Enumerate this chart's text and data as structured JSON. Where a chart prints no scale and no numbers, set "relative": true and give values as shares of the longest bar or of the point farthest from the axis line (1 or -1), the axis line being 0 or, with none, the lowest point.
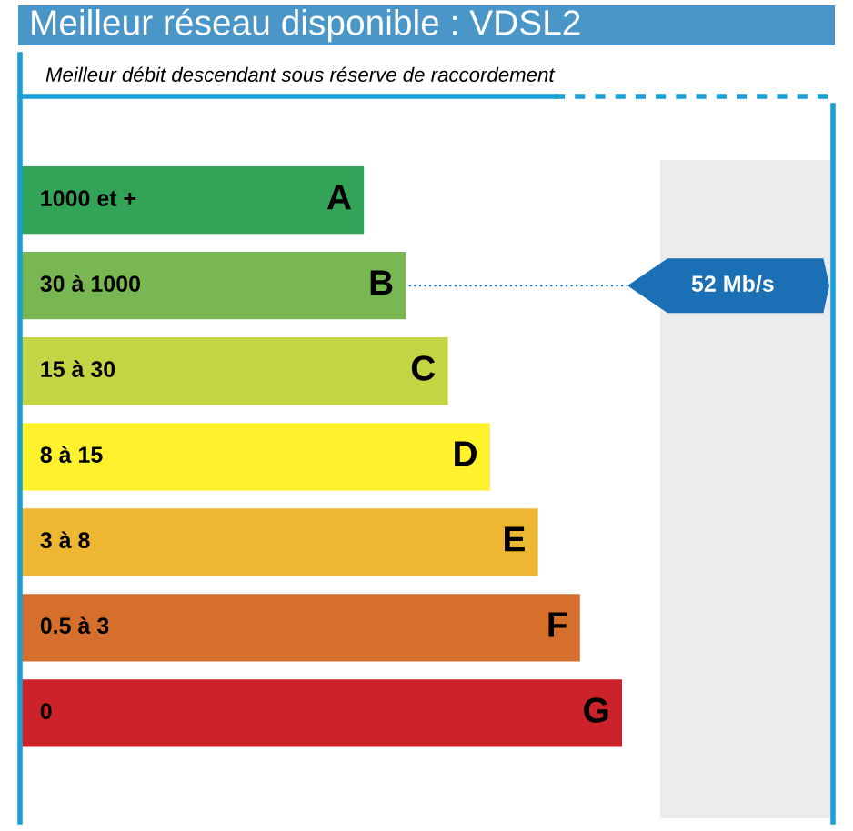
{
  "chart_data": {
    "type": "bar",
    "orientation": "horizontal",
    "relative": true,
    "title": "Meilleur réseau disponible : VDSL2",
    "subtitle": "Meilleur débit descendant sous réserve de raccordement",
    "categories": [
      "1000 et +",
      "30 à 1000",
      "15 à 30",
      "8 à 15",
      "3 à 8",
      "0.5 à 3",
      "0"
    ],
    "values": [
      0.57,
      0.64,
      0.71,
      0.78,
      0.86,
      0.93,
      1
    ],
    "colors": [
      "#33a357",
      "#79b752",
      "#c3d545",
      "#fff12c",
      "#edb731",
      "#d66f2c",
      "#cc232a"
    ],
    "annotations": [
      {
        "text": "A",
        "x": 0.57,
        "y": "1000 et +"
      },
      {
        "text": "B",
        "x": 0.64,
        "y": "30 à 1000"
      },
      {
        "text": "C",
        "x": 0.71,
        "y": "15 à 30"
      },
      {
        "text": "D",
        "x": 0.78,
        "y": "8 à 15"
      },
      {
        "text": "E",
        "x": 0.86,
        "y": "3 à 8"
      },
      {
        "text": "F",
        "x": 0.93,
        "y": "0.5 à 3"
      },
      {
        "text": "G",
        "x": 1,
        "y": "0"
      },
      "52 Mb/s"
    ],
    "legend": false
  }
}
